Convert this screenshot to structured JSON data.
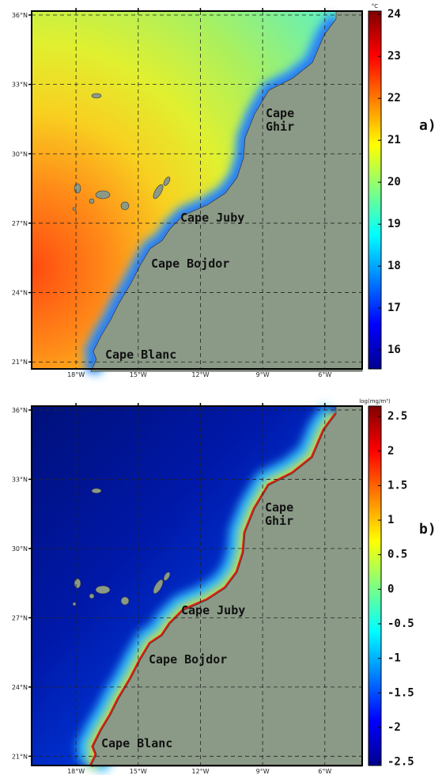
{
  "panels": [
    {
      "label": "a)",
      "lonlim": [
        -20.14,
        -4.2
      ],
      "latlim": [
        20.7,
        36.17
      ],
      "lonticks": [
        {
          "value": -18,
          "label": "18°W"
        },
        {
          "value": -15,
          "label": "15°W"
        },
        {
          "value": -12,
          "label": "12°W"
        },
        {
          "value": -9,
          "label": "9°W"
        },
        {
          "value": -6,
          "label": "6°W"
        }
      ],
      "latticks": [
        {
          "value": 36,
          "label": "36°N"
        },
        {
          "value": 33,
          "label": "33°N"
        },
        {
          "value": 30,
          "label": "30°N"
        },
        {
          "value": 27,
          "label": "27°N"
        },
        {
          "value": 24,
          "label": "24°N"
        },
        {
          "value": 21,
          "label": "21°N"
        }
      ],
      "places": [
        "Cape\nGhir",
        "Cape Juby",
        "Cape Bojdor",
        "Cape Blanc"
      ],
      "colorbar": {
        "unit": "°C",
        "lim": [
          15.55,
          24.08
        ],
        "ticks": [
          16,
          17,
          18,
          19,
          20,
          21,
          22,
          23,
          24
        ]
      }
    },
    {
      "label": "b)",
      "lonlim": [
        -20.14,
        -4.2
      ],
      "latlim": [
        20.6,
        36.17
      ],
      "lonticks": [
        {
          "value": -18,
          "label": "18°W"
        },
        {
          "value": -15,
          "label": "15°W"
        },
        {
          "value": -12,
          "label": "12°W"
        },
        {
          "value": -9,
          "label": "9°W"
        },
        {
          "value": -6,
          "label": "6°W"
        }
      ],
      "latticks": [
        {
          "value": 36,
          "label": "36°N"
        },
        {
          "value": 33,
          "label": "33°N"
        },
        {
          "value": 30,
          "label": "30°N"
        },
        {
          "value": 27,
          "label": "27°N"
        },
        {
          "value": 24,
          "label": "24°N"
        },
        {
          "value": 21,
          "label": "21°N"
        }
      ],
      "places": [
        "Cape\nGhir",
        "Cape Juby",
        "Cape Bojdor",
        "Cape Blanc"
      ],
      "colorbar": {
        "unit": "log(mg/m³)",
        "lim": [
          -2.55,
          2.65
        ],
        "ticks": [
          2.5,
          2,
          1.5,
          1,
          0.5,
          0,
          -0.5,
          -1,
          -1.5,
          -2,
          -2.5
        ]
      }
    }
  ]
}
